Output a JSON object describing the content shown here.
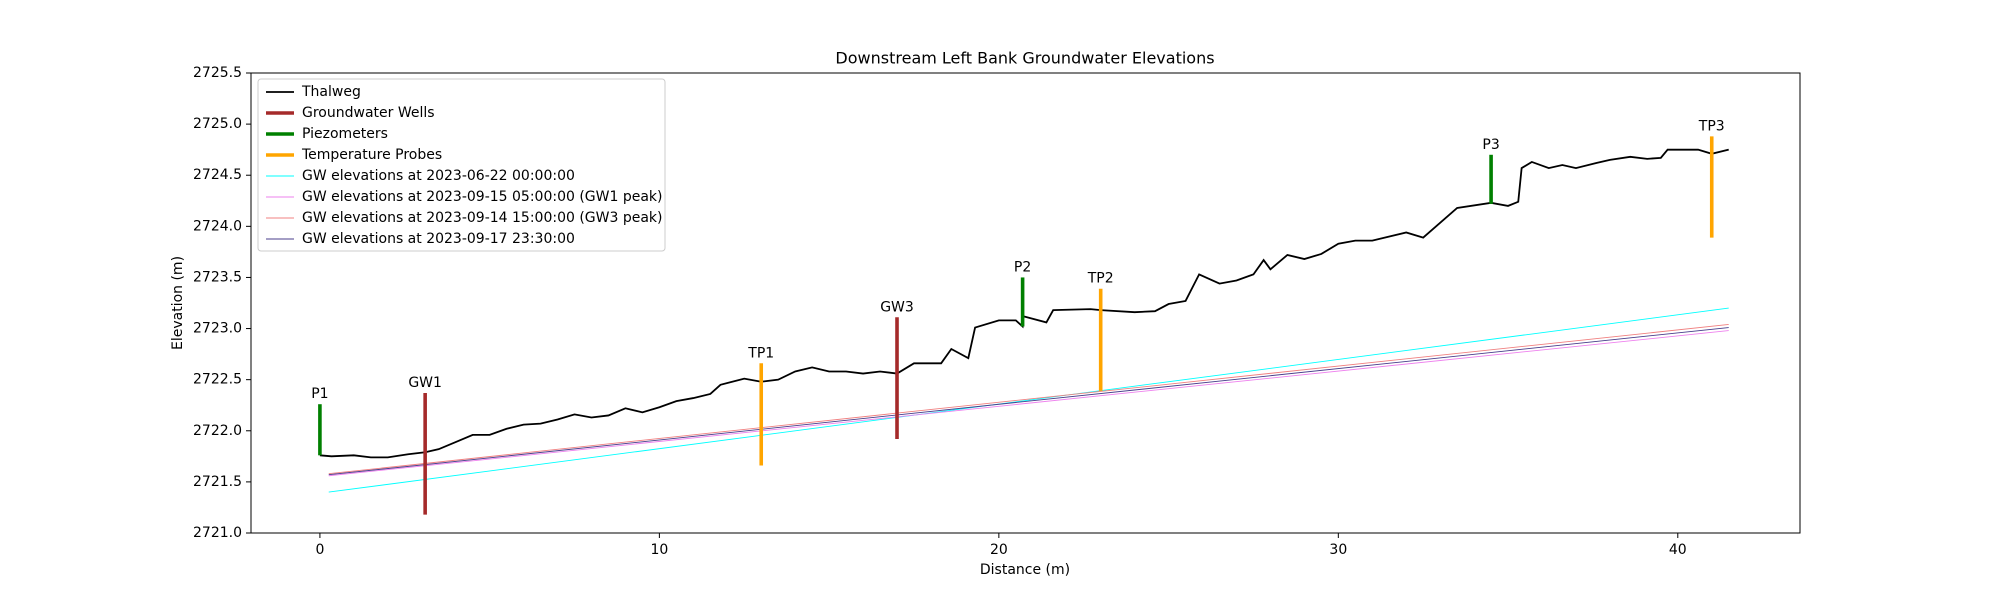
{
  "chart_data": {
    "type": "line",
    "title": "Downstream Left Bank Groundwater Elevations",
    "xlabel": "Distance (m)",
    "ylabel": "Elevation (m)",
    "xlim": [
      -2.03,
      43.6
    ],
    "ylim": [
      2721.0,
      2725.5
    ],
    "xticks": [
      0,
      10,
      20,
      30,
      40
    ],
    "yticks": [
      {
        "value": 2721,
        "label": "2721.0"
      },
      2721.5,
      {
        "value": 2722,
        "label": "2722.0"
      },
      2722.5,
      {
        "value": 2723,
        "label": "2723.0"
      },
      2723.5,
      {
        "value": 2724,
        "label": "2724.0"
      },
      2724.5,
      {
        "value": 2725,
        "label": "2725.0"
      },
      2725.5
    ],
    "legend": "upper left",
    "series": [
      {
        "name": "Thalweg",
        "style": "line",
        "color": "#000000",
        "x": [
          0,
          0.34,
          1.0,
          1.5,
          2.0,
          2.6,
          3.1,
          3.5,
          4.0,
          4.5,
          5.0,
          5.5,
          6.0,
          6.5,
          7.0,
          7.5,
          8.0,
          8.5,
          9.0,
          9.5,
          10.0,
          10.5,
          11.0,
          11.5,
          11.8,
          12.5,
          13.0,
          13.5,
          14.0,
          14.5,
          15.0,
          15.5,
          16.0,
          16.5,
          17.0,
          17.5,
          18.3,
          18.6,
          19.1,
          19.3,
          20.0,
          20.5,
          20.7,
          20.72,
          21.4,
          21.6,
          22.7,
          23.0,
          24.0,
          24.6,
          25.0,
          25.5,
          25.9,
          26.5,
          27.0,
          27.5,
          27.8,
          28.0,
          28.5,
          29.0,
          29.5,
          30.0,
          30.5,
          31.0,
          32.0,
          32.5,
          33.5,
          34.5,
          35.0,
          35.3,
          35.4,
          35.7,
          36.2,
          36.6,
          37.0,
          37.6,
          38.0,
          38.6,
          39.1,
          39.5,
          39.7,
          40.6,
          41.0,
          41.5
        ],
        "values": [
          2721.76,
          2721.75,
          2721.76,
          2721.74,
          2721.74,
          2721.77,
          2721.79,
          2721.82,
          2721.89,
          2721.96,
          2721.96,
          2722.02,
          2722.06,
          2722.07,
          2722.11,
          2722.16,
          2722.13,
          2722.15,
          2722.22,
          2722.18,
          2722.23,
          2722.29,
          2722.32,
          2722.36,
          2722.45,
          2722.51,
          2722.48,
          2722.5,
          2722.58,
          2722.62,
          2722.58,
          2722.58,
          2722.56,
          2722.58,
          2722.56,
          2722.66,
          2722.66,
          2722.8,
          2722.71,
          2723.01,
          2723.08,
          2723.08,
          2723.02,
          2723.12,
          2723.06,
          2723.18,
          2723.19,
          2723.18,
          2723.16,
          2723.17,
          2723.24,
          2723.27,
          2723.53,
          2723.44,
          2723.47,
          2723.53,
          2723.67,
          2723.58,
          2723.72,
          2723.68,
          2723.73,
          2723.83,
          2723.86,
          2723.86,
          2723.94,
          2723.89,
          2724.18,
          2724.23,
          2724.2,
          2724.24,
          2724.57,
          2724.63,
          2724.57,
          2724.6,
          2724.57,
          2724.62,
          2724.65,
          2724.68,
          2724.66,
          2724.67,
          2724.75,
          2724.75,
          2724.71,
          2724.75
        ]
      },
      {
        "name": "Groundwater Wells",
        "style": "vlines",
        "color": "#a52a2a",
        "labels": [
          "GW1",
          "GW3"
        ],
        "x": [
          3.1,
          17.0
        ],
        "bottoms": [
          2721.18,
          2721.92
        ],
        "tops": [
          2722.37,
          2723.11
        ]
      },
      {
        "name": "Piezometers",
        "style": "vlines",
        "color": "#008000",
        "labels": [
          "P1",
          "P2",
          "P3"
        ],
        "x": [
          0,
          20.7,
          34.5
        ],
        "bottoms": [
          2721.76,
          2723.02,
          2724.22
        ],
        "tops": [
          2722.26,
          2723.5,
          2724.7
        ]
      },
      {
        "name": "Temperature Probes",
        "style": "vlines",
        "color": "#ffa500",
        "labels": [
          "TP1",
          "TP2",
          "TP3"
        ],
        "x": [
          13.0,
          23.0,
          41.0
        ],
        "bottoms": [
          2721.66,
          2722.39,
          2723.89
        ],
        "tops": [
          2722.66,
          2723.39,
          2724.88
        ]
      },
      {
        "name": "GW elevations at 2023-06-22 00:00:00",
        "style": "thin",
        "color": "#00ffff",
        "x": [
          0.26,
          41.5
        ],
        "values": [
          2721.4,
          2723.2
        ]
      },
      {
        "name": "GW elevations at 2023-09-15 05:00:00 (GW1 peak)",
        "style": "thin",
        "color": "#ee82ee",
        "x": [
          0.26,
          41.5
        ],
        "values": [
          2721.56,
          2722.98
        ]
      },
      {
        "name": "GW elevations at 2023-09-14 15:00:00 (GW3 peak)",
        "style": "thin",
        "color": "#f08080",
        "x": [
          0.26,
          41.5
        ],
        "values": [
          2721.58,
          2723.04
        ]
      },
      {
        "name": "GW elevations at 2023-09-17 23:30:00",
        "style": "thin",
        "color": "#483d8b",
        "x": [
          0.26,
          41.5
        ],
        "values": [
          2721.57,
          2723.01
        ]
      }
    ]
  }
}
